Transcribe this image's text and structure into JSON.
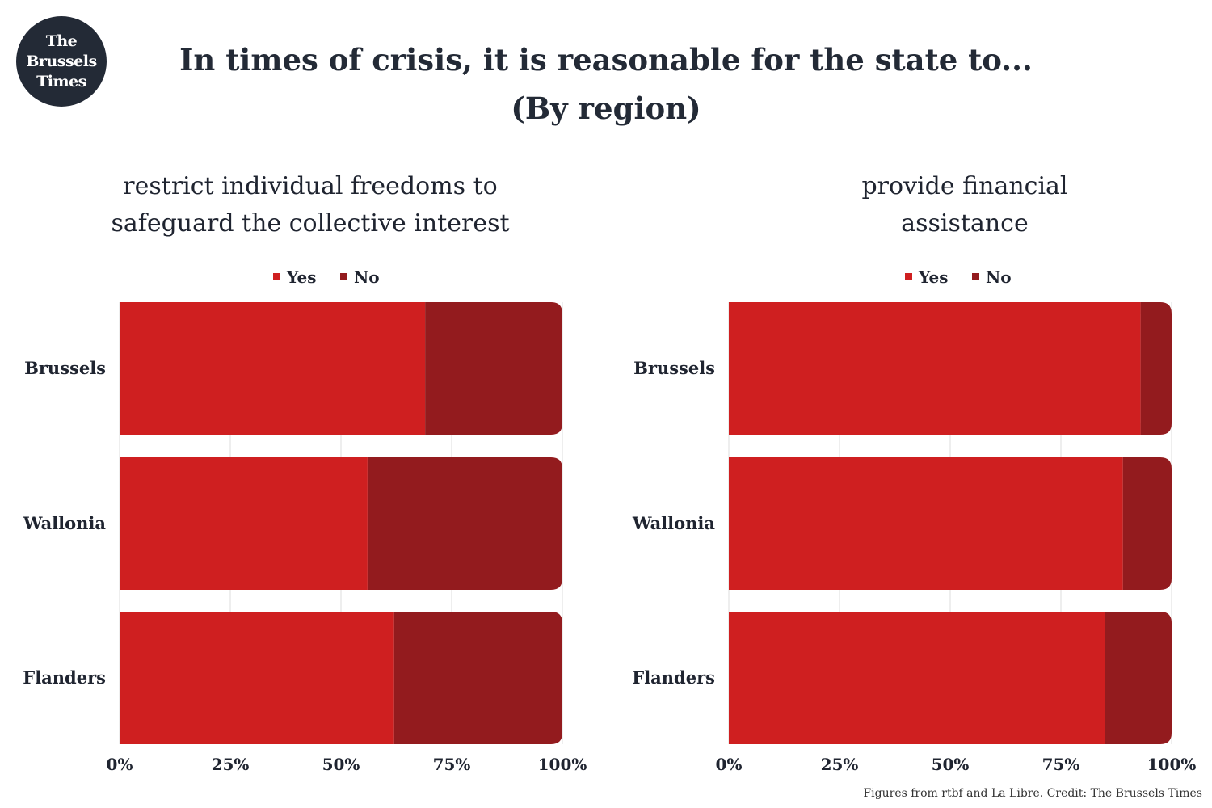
{
  "logo": {
    "lines": [
      "The",
      "Brussels",
      "Times"
    ]
  },
  "title": {
    "line1": "In times of crisis, it is reasonable for the state to...",
    "line2": "(By region)"
  },
  "footer": "Figures from rtbf and La Libre. Credit: The Brussels Times",
  "colors": {
    "yes": "#cf1f20",
    "no": "#931b1e"
  },
  "chart_data": [
    {
      "type": "bar",
      "orientation": "horizontal",
      "stacked": true,
      "title_lines": [
        "restrict individual freedoms to",
        "safeguard the collective interest"
      ],
      "categories": [
        "Brussels",
        "Wallonia",
        "Flanders"
      ],
      "series": [
        {
          "name": "Yes",
          "values": [
            69,
            56,
            62
          ]
        },
        {
          "name": "No",
          "values": [
            31,
            44,
            38
          ]
        }
      ],
      "xlim": [
        0,
        100
      ],
      "xticks": [
        "0%",
        "25%",
        "50%",
        "75%",
        "100%"
      ],
      "legend": "top",
      "grid": true
    },
    {
      "type": "bar",
      "orientation": "horizontal",
      "stacked": true,
      "title_lines": [
        "provide financial",
        "assistance"
      ],
      "categories": [
        "Brussels",
        "Wallonia",
        "Flanders"
      ],
      "series": [
        {
          "name": "Yes",
          "values": [
            93,
            89,
            85
          ]
        },
        {
          "name": "No",
          "values": [
            7,
            11,
            15
          ]
        }
      ],
      "xlim": [
        0,
        100
      ],
      "xticks": [
        "0%",
        "25%",
        "50%",
        "75%",
        "100%"
      ],
      "legend": "top",
      "grid": true
    }
  ]
}
